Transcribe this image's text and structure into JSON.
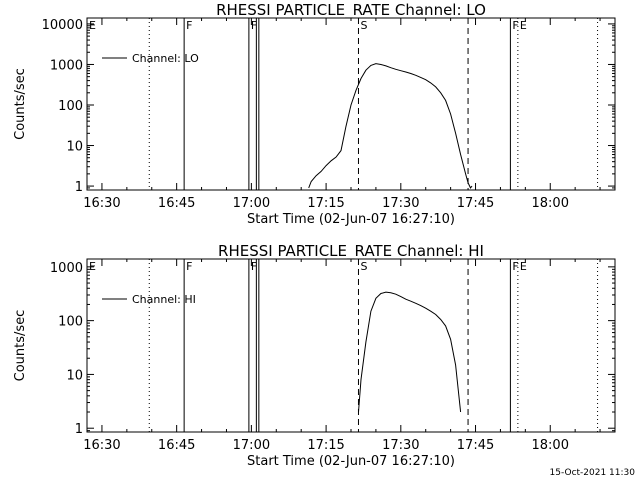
{
  "footer": {
    "timestamp": "15-Oct-2021 11:30"
  },
  "chart_data": [
    {
      "type": "line",
      "title": "RHESSI PARTICLE_RATE Channel: LO",
      "xlabel": "Start Time (02-Jun-07 16:27:10)",
      "ylabel": "Counts/sec",
      "yscale": "log",
      "xlim": [
        "16:27",
        "18:13"
      ],
      "ylim": [
        0.8,
        14000
      ],
      "x_ticks": [
        "16:30",
        "16:45",
        "17:00",
        "17:15",
        "17:30",
        "17:45",
        "18:00"
      ],
      "y_ticks": [
        {
          "value": 1,
          "label": "1"
        },
        {
          "value": 10,
          "label": "10"
        },
        {
          "value": 100,
          "label": "100"
        },
        {
          "value": 1000,
          "label": "1000"
        },
        {
          "value": 10000,
          "label": "10000"
        }
      ],
      "legend": {
        "position": "top-left",
        "entries": [
          "Channel: LO"
        ]
      },
      "markers": [
        {
          "time": "16:27",
          "style": "solid",
          "label": "E"
        },
        {
          "time": "16:39.5",
          "style": "dotted",
          "label": ""
        },
        {
          "time": "16:46.5",
          "style": "solid",
          "label": "F"
        },
        {
          "time": "16:59.5",
          "style": "solid",
          "label": "F"
        },
        {
          "time": "17:01",
          "style": "solid",
          "label": ""
        },
        {
          "time": "17:01.5",
          "style": "solid",
          "label": ""
        },
        {
          "time": "17:21.5",
          "style": "dashed",
          "label": "S"
        },
        {
          "time": "17:43.5",
          "style": "dashed",
          "label": ""
        },
        {
          "time": "17:52",
          "style": "solid",
          "label": "F"
        },
        {
          "time": "17:53.5",
          "style": "dotted",
          "label": "E"
        },
        {
          "time": "18:09.5",
          "style": "dotted",
          "label": ""
        }
      ],
      "series": [
        {
          "name": "Channel: LO",
          "x": [
            "17:11.5",
            "17:12",
            "17:13",
            "17:14",
            "17:15",
            "17:16",
            "17:17",
            "17:18",
            "17:19",
            "17:20",
            "17:21",
            "17:22",
            "17:23",
            "17:24",
            "17:25",
            "17:26",
            "17:27",
            "17:28",
            "17:29",
            "17:30",
            "17:31",
            "17:32",
            "17:33",
            "17:34",
            "17:35",
            "17:36",
            "17:37",
            "17:38",
            "17:39",
            "17:40",
            "17:41",
            "17:42",
            "17:43",
            "17:43.5",
            "17:44",
            "17:44.3"
          ],
          "y": [
            0.9,
            1.3,
            1.8,
            2.3,
            3.2,
            4.2,
            5.2,
            7.5,
            30,
            100,
            230,
            450,
            720,
            950,
            1050,
            1000,
            920,
            830,
            760,
            700,
            650,
            600,
            540,
            480,
            420,
            350,
            280,
            200,
            130,
            60,
            20,
            6,
            2,
            1.2,
            0.9,
            1.0
          ]
        }
      ]
    },
    {
      "type": "line",
      "title": "RHESSI PARTICLE_RATE Channel: HI",
      "xlabel": "Start Time (02-Jun-07 16:27:10)",
      "ylabel": "Counts/sec",
      "yscale": "log",
      "xlim": [
        "16:27",
        "18:13"
      ],
      "ylim": [
        0.85,
        1400
      ],
      "x_ticks": [
        "16:30",
        "16:45",
        "17:00",
        "17:15",
        "17:30",
        "17:45",
        "18:00"
      ],
      "y_ticks": [
        {
          "value": 1,
          "label": "1"
        },
        {
          "value": 10,
          "label": "10"
        },
        {
          "value": 100,
          "label": "100"
        },
        {
          "value": 1000,
          "label": "1000"
        }
      ],
      "legend": {
        "position": "top-left",
        "entries": [
          "Channel: HI"
        ]
      },
      "markers": [
        {
          "time": "16:27",
          "style": "solid",
          "label": "E"
        },
        {
          "time": "16:39.5",
          "style": "dotted",
          "label": ""
        },
        {
          "time": "16:46.5",
          "style": "solid",
          "label": "F"
        },
        {
          "time": "16:59.5",
          "style": "solid",
          "label": "F"
        },
        {
          "time": "17:01",
          "style": "solid",
          "label": ""
        },
        {
          "time": "17:01.5",
          "style": "solid",
          "label": ""
        },
        {
          "time": "17:21.5",
          "style": "dashed",
          "label": "S"
        },
        {
          "time": "17:43.5",
          "style": "dashed",
          "label": ""
        },
        {
          "time": "17:52",
          "style": "solid",
          "label": "F"
        },
        {
          "time": "17:53.5",
          "style": "dotted",
          "label": "E"
        },
        {
          "time": "18:09.5",
          "style": "dotted",
          "label": ""
        }
      ],
      "series": [
        {
          "name": "Channel: HI",
          "x": [
            "17:21.5",
            "17:22",
            "17:23",
            "17:24",
            "17:25",
            "17:26",
            "17:27",
            "17:28",
            "17:29",
            "17:30",
            "17:31",
            "17:32",
            "17:33",
            "17:34",
            "17:35",
            "17:36",
            "17:37",
            "17:38",
            "17:39",
            "17:40",
            "17:41",
            "17:42"
          ],
          "y": [
            2,
            8,
            40,
            150,
            260,
            320,
            340,
            330,
            310,
            280,
            250,
            230,
            210,
            190,
            170,
            150,
            130,
            105,
            80,
            45,
            15,
            2
          ]
        }
      ]
    }
  ]
}
